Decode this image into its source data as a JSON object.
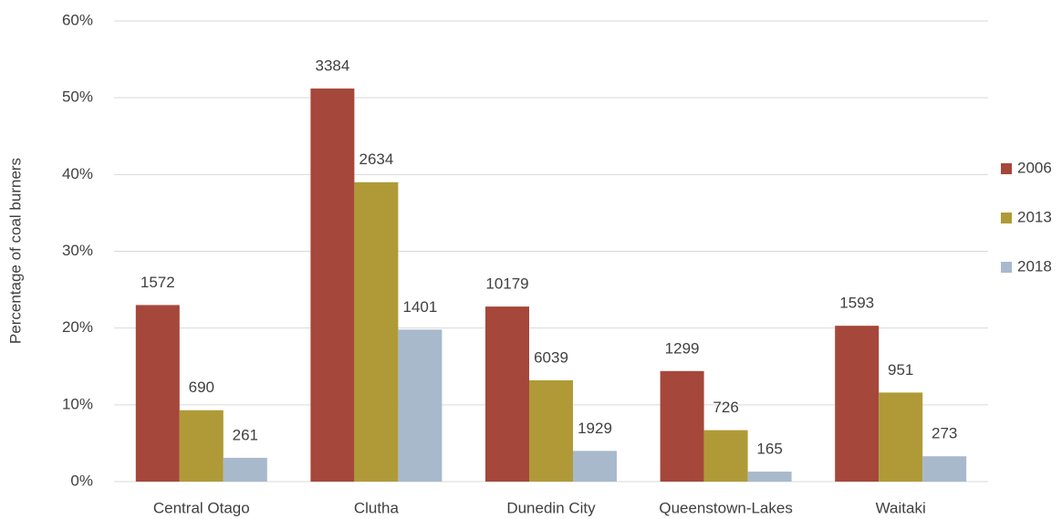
{
  "chart_data": {
    "type": "bar",
    "y_label": "Percentage of coal burners",
    "categories": [
      "Central Otago",
      "Clutha",
      "Dunedin City",
      "Queenstown-Lakes",
      "Waitaki"
    ],
    "series": [
      {
        "name": "2006",
        "color": "#a5473a",
        "values": [
          23.0,
          51.2,
          22.8,
          14.4,
          20.3
        ],
        "counts": [
          1572,
          3384,
          10179,
          1299,
          1593
        ]
      },
      {
        "name": "2013",
        "color": "#b09a37",
        "values": [
          9.3,
          39.0,
          13.2,
          6.7,
          11.6
        ],
        "counts": [
          690,
          2634,
          6039,
          726,
          951
        ]
      },
      {
        "name": "2018",
        "color": "#a8b9cc",
        "values": [
          3.1,
          19.8,
          4.0,
          1.3,
          3.3
        ],
        "counts": [
          261,
          1401,
          1929,
          165,
          273
        ]
      }
    ],
    "ylim": [
      0,
      60
    ],
    "yticks": [
      {
        "value": 0,
        "label": "0%"
      },
      {
        "value": 10,
        "label": "10%"
      },
      {
        "value": 20,
        "label": "20%"
      },
      {
        "value": 30,
        "label": "30%"
      },
      {
        "value": 40,
        "label": "40%"
      },
      {
        "value": 50,
        "label": "50%"
      },
      {
        "value": 60,
        "label": "60%"
      }
    ],
    "grid": true,
    "legend": "right"
  }
}
